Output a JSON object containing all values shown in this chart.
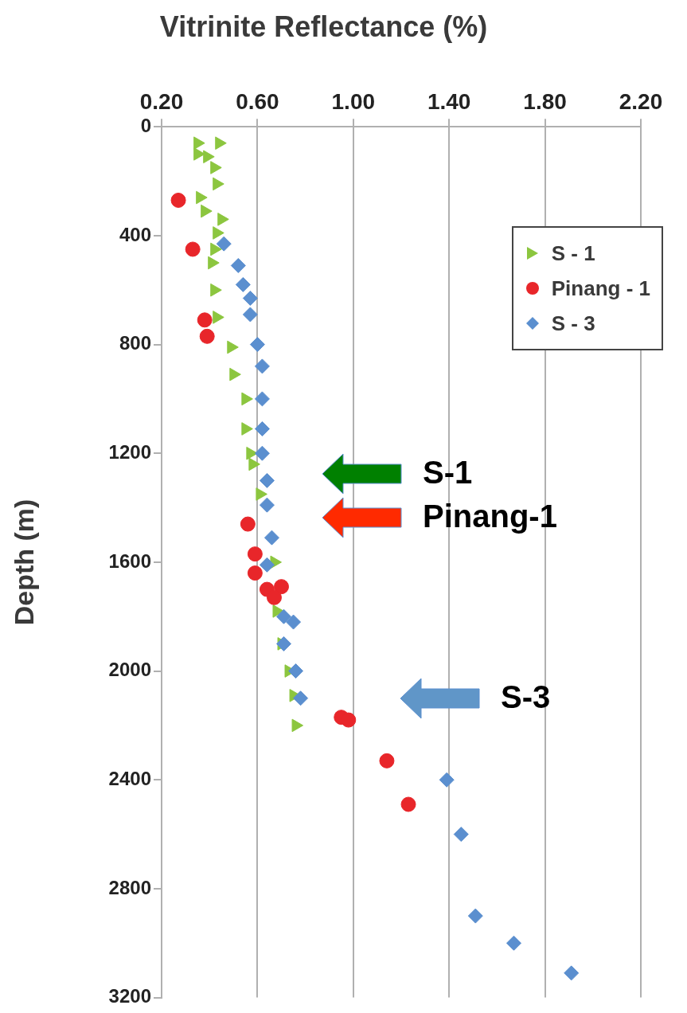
{
  "chart_data": {
    "type": "scatter",
    "title": "Vitrinite Reflectance (%)",
    "ylabel": "Depth (m)",
    "xlim": [
      0.2,
      2.2
    ],
    "xticks": [
      {
        "value": 0.2,
        "label": "0.20"
      },
      {
        "value": 0.6,
        "label": "0.60"
      },
      {
        "value": 1.0,
        "label": "1.00"
      },
      {
        "value": 1.4,
        "label": "1.40"
      },
      {
        "value": 1.8,
        "label": "1.80"
      },
      {
        "value": 2.2,
        "label": "2.20"
      }
    ],
    "ylim": [
      3200,
      0
    ],
    "yticks": [
      0,
      400,
      800,
      1200,
      1600,
      2000,
      2400,
      2800,
      3200
    ],
    "grid": "x",
    "legend": "top right",
    "series": [
      {
        "name": "S - 1",
        "color": "#8cc63f",
        "marker": "triangle",
        "x": [
          0.35,
          0.44,
          0.35,
          0.39,
          0.42,
          0.43,
          0.36,
          0.38,
          0.45,
          0.43,
          0.42,
          0.41,
          0.42,
          0.43,
          0.49,
          0.5,
          0.55,
          0.55,
          0.57,
          0.58,
          0.61,
          0.67,
          0.68,
          0.7,
          0.73,
          0.75,
          0.76
        ],
        "values": [
          60,
          60,
          100,
          110,
          150,
          210,
          260,
          310,
          340,
          390,
          450,
          500,
          600,
          700,
          810,
          910,
          1000,
          1110,
          1200,
          1240,
          1350,
          1600,
          1780,
          1900,
          2000,
          2090,
          2200
        ]
      },
      {
        "name": "Pinang - 1",
        "color": "#e8262a",
        "marker": "circle",
        "x": [
          0.27,
          0.33,
          0.38,
          0.39,
          0.56,
          0.59,
          0.59,
          0.7,
          0.64,
          0.67,
          0.95,
          0.98,
          1.14,
          1.23
        ],
        "values": [
          270,
          450,
          710,
          770,
          1460,
          1570,
          1640,
          1690,
          1700,
          1730,
          2170,
          2180,
          2330,
          2490
        ]
      },
      {
        "name": "S - 3",
        "color": "#5b8fcf",
        "marker": "diamond",
        "x": [
          0.46,
          0.52,
          0.54,
          0.57,
          0.57,
          0.6,
          0.62,
          0.62,
          0.62,
          0.62,
          0.64,
          0.64,
          0.66,
          0.64,
          0.71,
          0.75,
          0.71,
          0.76,
          0.78,
          1.39,
          1.45,
          1.51,
          1.67,
          1.91
        ],
        "values": [
          430,
          510,
          580,
          630,
          690,
          800,
          880,
          1000,
          1110,
          1200,
          1300,
          1390,
          1510,
          1610,
          1800,
          1820,
          1900,
          2000,
          2100,
          2400,
          2600,
          2900,
          3000,
          3110
        ]
      }
    ],
    "annotations": [
      "S-1",
      "Pinang-1",
      "S-3"
    ]
  }
}
